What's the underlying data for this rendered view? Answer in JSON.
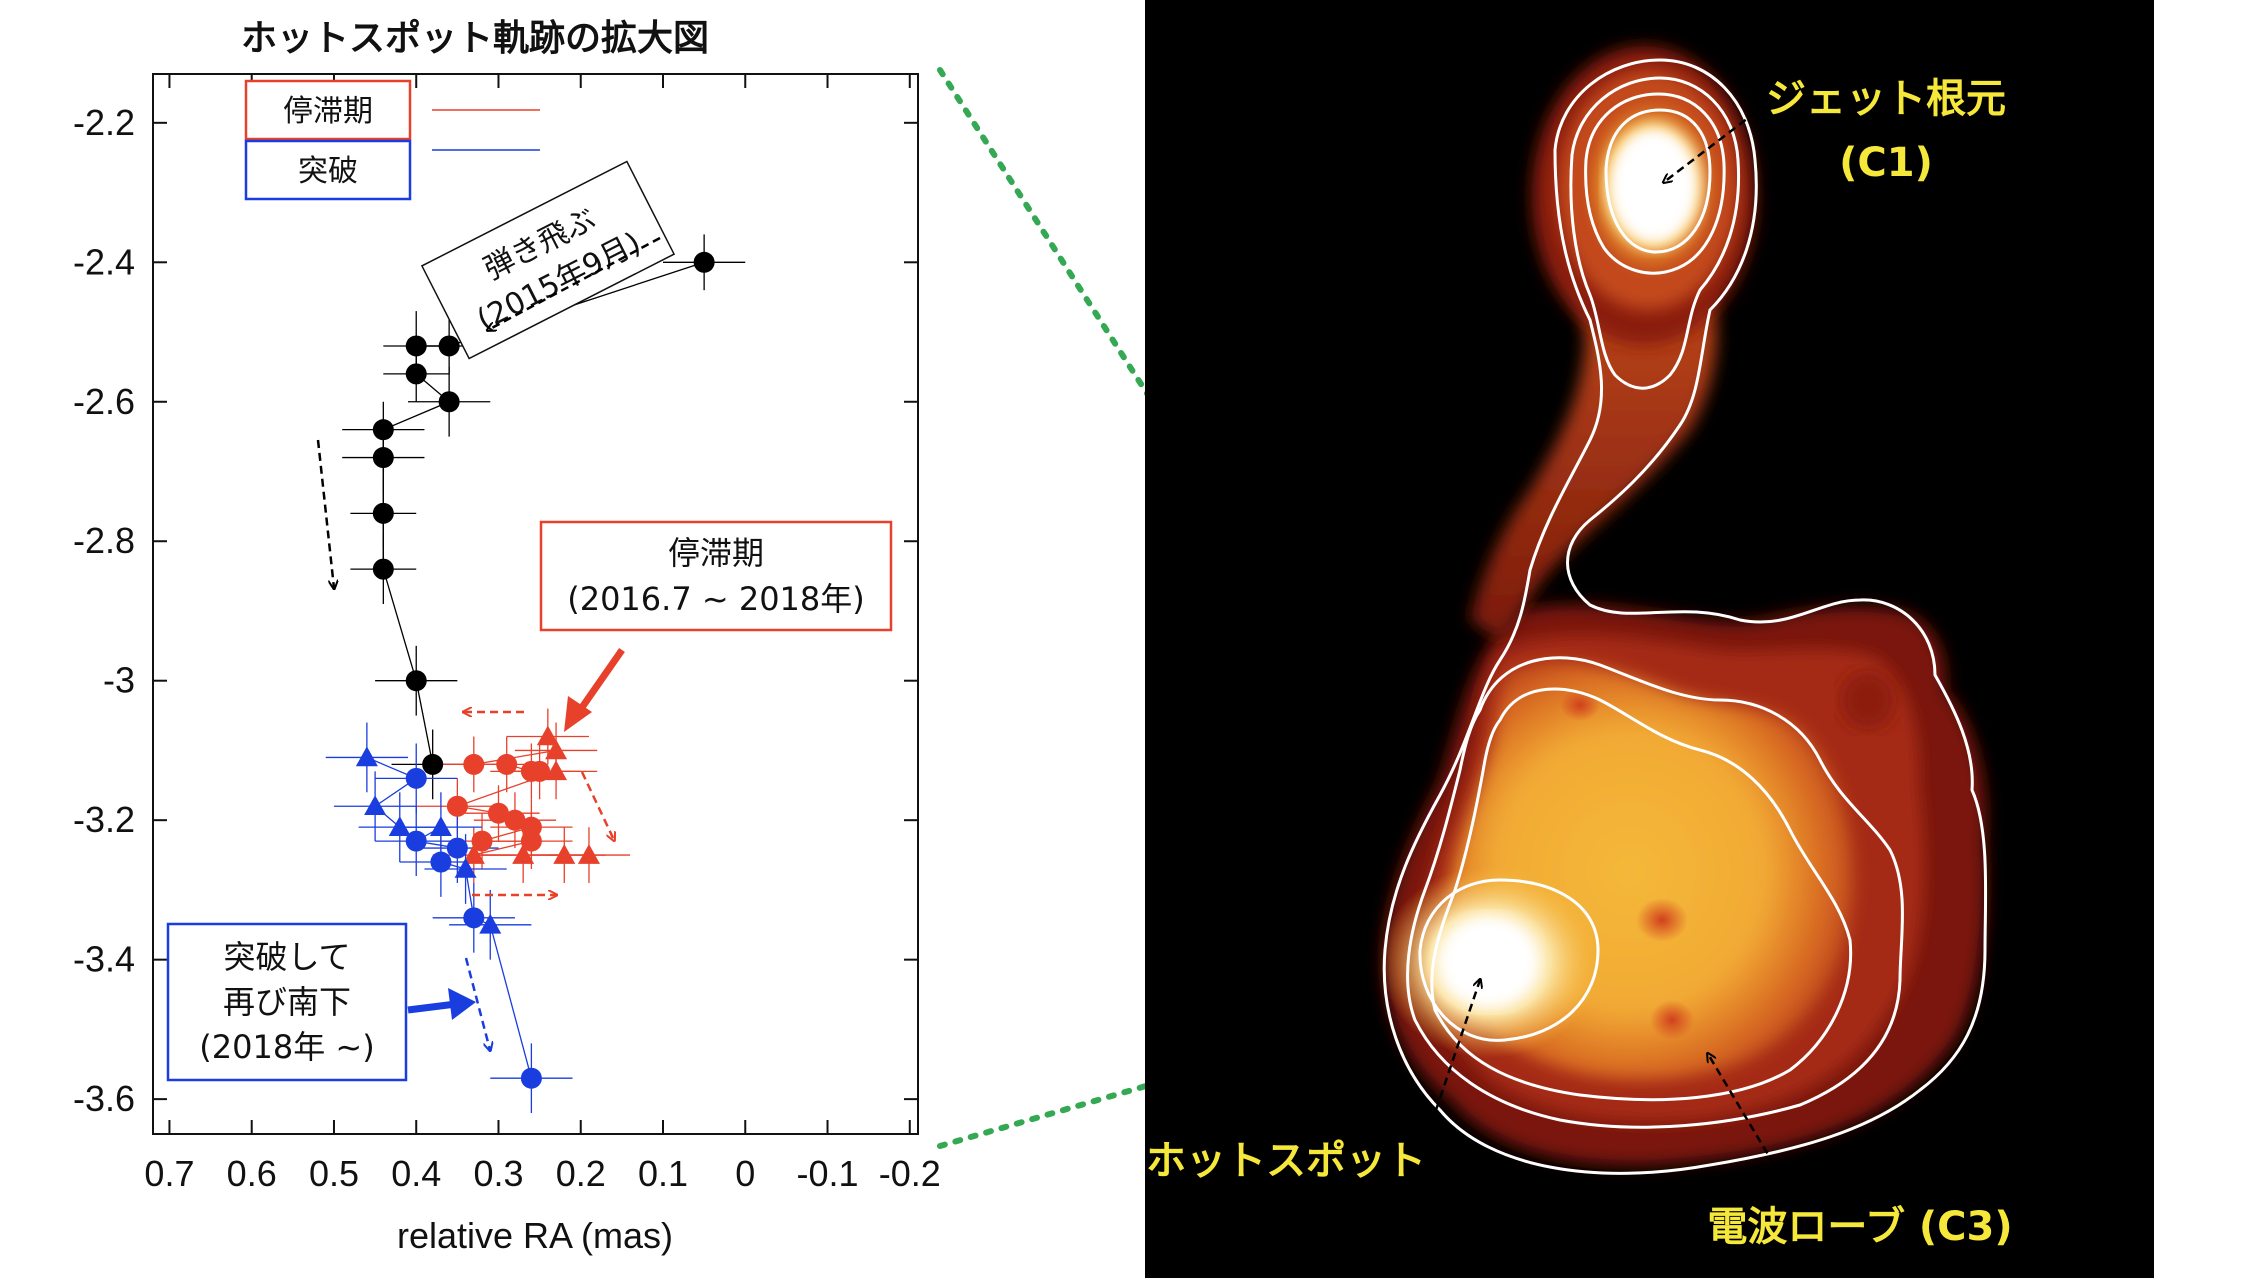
{
  "chart_data": {
    "type": "scatter",
    "title": "ホットスポット軌跡の拡大図",
    "xlabel": "relative RA (mas)",
    "ylabel": "",
    "xlim": [
      0.72,
      -0.21
    ],
    "ylim": [
      -3.65,
      -2.13
    ],
    "x_ticks": [
      "0.7",
      "0.6",
      "0.5",
      "0.4",
      "0.3",
      "0.2",
      "0.1",
      "0",
      "-0.1",
      "-0.2"
    ],
    "x_tick_values": [
      0.7,
      0.6,
      0.5,
      0.4,
      0.3,
      0.2,
      0.1,
      0,
      -0.1,
      -0.2
    ],
    "y_ticks": [
      "-2.2",
      "-2.4",
      "-2.6",
      "-2.8",
      "-3",
      "-3.2",
      "-3.4",
      "-3.6"
    ],
    "y_tick_values": [
      -2.2,
      -2.4,
      -2.6,
      -2.8,
      -3.0,
      -3.2,
      -3.4,
      -3.6
    ],
    "grid": false,
    "legend": [
      {
        "label": "停滞期",
        "color": "#e8412b"
      },
      {
        "label": "突破",
        "color": "#1a3de0"
      }
    ],
    "series": [
      {
        "color": "#000000",
        "marker": "circle",
        "points": [
          {
            "x": 0.05,
            "y": -2.4,
            "ex": 0.05,
            "ey": 0.04
          },
          {
            "x": 0.36,
            "y": -2.52,
            "ex": 0.04,
            "ey": 0.04
          },
          {
            "x": 0.4,
            "y": -2.52,
            "ex": 0.04,
            "ey": 0.05
          },
          {
            "x": 0.4,
            "y": -2.56,
            "ex": 0.04,
            "ey": 0.04
          },
          {
            "x": 0.36,
            "y": -2.6,
            "ex": 0.05,
            "ey": 0.05
          },
          {
            "x": 0.44,
            "y": -2.64,
            "ex": 0.05,
            "ey": 0.04
          },
          {
            "x": 0.44,
            "y": -2.68,
            "ex": 0.05,
            "ey": 0.05
          },
          {
            "x": 0.44,
            "y": -2.76,
            "ex": 0.04,
            "ey": 0.05
          },
          {
            "x": 0.44,
            "y": -2.84,
            "ex": 0.04,
            "ey": 0.05
          },
          {
            "x": 0.4,
            "y": -3.0,
            "ex": 0.05,
            "ey": 0.05
          },
          {
            "x": 0.38,
            "y": -3.12,
            "ex": 0.05,
            "ey": 0.05
          }
        ]
      },
      {
        "color": "#e8412b",
        "marker": "mixed",
        "points": [
          {
            "x": 0.24,
            "y": -3.08,
            "ex": 0.05,
            "ey": 0.04,
            "m": "tri"
          },
          {
            "x": 0.23,
            "y": -3.1,
            "ex": 0.05,
            "ey": 0.04,
            "m": "tri"
          },
          {
            "x": 0.33,
            "y": -3.12,
            "ex": 0.05,
            "ey": 0.04,
            "m": "circle"
          },
          {
            "x": 0.29,
            "y": -3.12,
            "ex": 0.05,
            "ey": 0.04,
            "m": "circle"
          },
          {
            "x": 0.26,
            "y": -3.13,
            "ex": 0.05,
            "ey": 0.04,
            "m": "circle"
          },
          {
            "x": 0.25,
            "y": -3.13,
            "ex": 0.05,
            "ey": 0.04,
            "m": "circle"
          },
          {
            "x": 0.23,
            "y": -3.13,
            "ex": 0.05,
            "ey": 0.04,
            "m": "tri"
          },
          {
            "x": 0.35,
            "y": -3.18,
            "ex": 0.05,
            "ey": 0.04,
            "m": "circle"
          },
          {
            "x": 0.3,
            "y": -3.19,
            "ex": 0.05,
            "ey": 0.04,
            "m": "circle"
          },
          {
            "x": 0.28,
            "y": -3.2,
            "ex": 0.05,
            "ey": 0.04,
            "m": "circle"
          },
          {
            "x": 0.26,
            "y": -3.21,
            "ex": 0.05,
            "ey": 0.04,
            "m": "circle"
          },
          {
            "x": 0.32,
            "y": -3.23,
            "ex": 0.05,
            "ey": 0.04,
            "m": "circle"
          },
          {
            "x": 0.26,
            "y": -3.23,
            "ex": 0.05,
            "ey": 0.04,
            "m": "circle"
          },
          {
            "x": 0.33,
            "y": -3.25,
            "ex": 0.05,
            "ey": 0.04,
            "m": "tri"
          },
          {
            "x": 0.27,
            "y": -3.25,
            "ex": 0.05,
            "ey": 0.04,
            "m": "tri"
          },
          {
            "x": 0.22,
            "y": -3.25,
            "ex": 0.05,
            "ey": 0.04,
            "m": "tri"
          },
          {
            "x": 0.19,
            "y": -3.25,
            "ex": 0.05,
            "ey": 0.04,
            "m": "tri"
          }
        ]
      },
      {
        "color": "#1a3de0",
        "marker": "mixed",
        "points": [
          {
            "x": 0.46,
            "y": -3.11,
            "ex": 0.05,
            "ey": 0.05,
            "m": "tri"
          },
          {
            "x": 0.4,
            "y": -3.14,
            "ex": 0.05,
            "ey": 0.05,
            "m": "circle"
          },
          {
            "x": 0.45,
            "y": -3.18,
            "ex": 0.05,
            "ey": 0.05,
            "m": "tri"
          },
          {
            "x": 0.42,
            "y": -3.21,
            "ex": 0.05,
            "ey": 0.05,
            "m": "tri"
          },
          {
            "x": 0.37,
            "y": -3.21,
            "ex": 0.05,
            "ey": 0.05,
            "m": "tri"
          },
          {
            "x": 0.4,
            "y": -3.23,
            "ex": 0.05,
            "ey": 0.05,
            "m": "circle"
          },
          {
            "x": 0.35,
            "y": -3.24,
            "ex": 0.05,
            "ey": 0.05,
            "m": "circle"
          },
          {
            "x": 0.37,
            "y": -3.26,
            "ex": 0.05,
            "ey": 0.05,
            "m": "circle"
          },
          {
            "x": 0.34,
            "y": -3.27,
            "ex": 0.05,
            "ey": 0.05,
            "m": "tri"
          },
          {
            "x": 0.33,
            "y": -3.34,
            "ex": 0.05,
            "ey": 0.05,
            "m": "circle"
          },
          {
            "x": 0.31,
            "y": -3.35,
            "ex": 0.05,
            "ey": 0.05,
            "m": "tri"
          },
          {
            "x": 0.26,
            "y": -3.57,
            "ex": 0.05,
            "ey": 0.05,
            "m": "circle"
          }
        ]
      }
    ],
    "annotations": {
      "jump": {
        "line1": "弾き飛ぶ",
        "line2": "(2015年9月)"
      },
      "stagnation": {
        "line1": "停滞期",
        "line2": "(2016.7 ~ 2018年)"
      },
      "breakthrough": {
        "line1": "突破して",
        "line2": "再び南下",
        "line3": "(2018年 ~)"
      }
    }
  },
  "image_panel": {
    "colors": {
      "background": "#000000",
      "contour": "#ffffff",
      "label": "#f6e83a",
      "connector": "#34a853"
    },
    "labels": {
      "jet_base": "ジェット根元",
      "jet_base_id": "(C1)",
      "hotspot": "ホットスポット",
      "lobe": "電波ローブ (C3)"
    }
  }
}
